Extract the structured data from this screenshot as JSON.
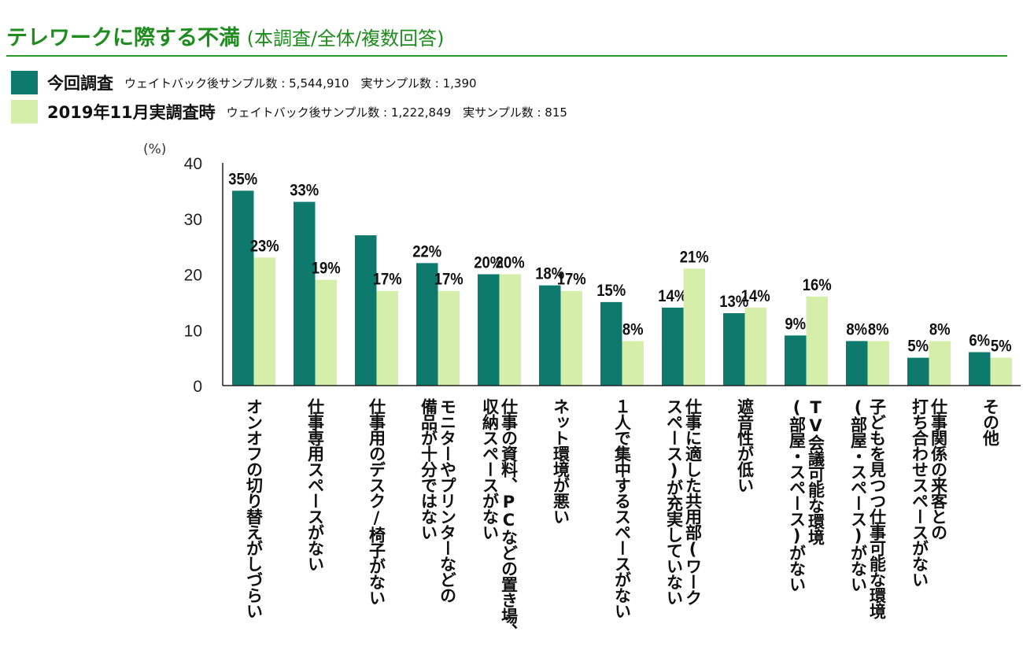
{
  "header": {
    "title": "テレワークに際する不満",
    "subtitle": "(本調査/全体/複数回答)"
  },
  "legend": [
    {
      "name": "今回調査",
      "note": "ウェイトバック後サンプル数 : 5,544,910　実サンプル数 : 1,390",
      "color": "#0e7a6e"
    },
    {
      "name": "2019年11月実調査時",
      "note": "ウェイトバック後サンプル数 : 1,222,849　実サンプル数 : 815",
      "color": "#d5eeaa"
    }
  ],
  "chart_data": {
    "type": "bar",
    "ylabel": "(%)",
    "ylim": [
      0,
      40
    ],
    "yticks": [
      0,
      10,
      20,
      30,
      40
    ],
    "grid": false,
    "legend_position": "top-left",
    "categories": [
      "オンオフの切り替えがしづらい",
      "仕事専用スペースがない",
      "仕事用のデスク/椅子がない",
      "モニターやプリンターなどの\n備品が十分ではない",
      "仕事の資料、PCなどの置き場、\n収納スペースがない",
      "ネット環境が悪い",
      "１人で集中するスペースがない",
      "仕事に適した共用部(ワーク\nスペース)が充実していない",
      "遮音性が低い",
      "TV会議可能な環境\n(部屋・スペース)がない",
      "子どもを見つつ仕事可能な環境\n(部屋・スペース)がない",
      "仕事関係の来客との\n打ち合わせスペースがない",
      "その他"
    ],
    "series": [
      {
        "name": "今回調査",
        "color": "#0e7a6e",
        "values": [
          35,
          33,
          27,
          22,
          20,
          18,
          15,
          14,
          13,
          9,
          8,
          5,
          6
        ],
        "labels": [
          "35%",
          "33%",
          "",
          "22%",
          "20%",
          "18%",
          "15%",
          "14%",
          "13%",
          "9%",
          "8%",
          "5%",
          "6%"
        ]
      },
      {
        "name": "2019年11月実調査時",
        "color": "#d5eeaa",
        "values": [
          23,
          19,
          17,
          17,
          20,
          17,
          8,
          21,
          14,
          16,
          8,
          8,
          5
        ],
        "labels": [
          "23%",
          "19%",
          "17%",
          "17%",
          "20%",
          "17%",
          "8%",
          "21%",
          "14%",
          "16%",
          "8%",
          "8%",
          "5%"
        ]
      }
    ]
  }
}
